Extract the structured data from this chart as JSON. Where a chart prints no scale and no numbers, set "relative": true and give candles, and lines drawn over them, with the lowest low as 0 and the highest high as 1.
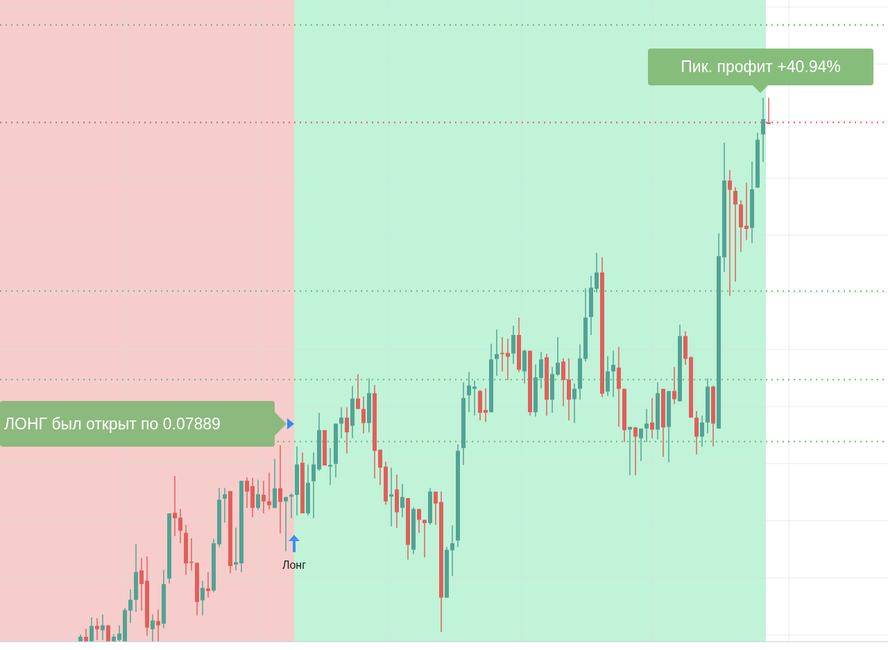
{
  "chart_data": {
    "type": "candlestick",
    "relative": true,
    "grid": true,
    "categories": [
      null,
      null,
      null,
      null,
      null,
      null,
      null,
      null,
      null,
      null,
      null,
      null,
      null,
      null,
      null,
      null,
      null,
      null,
      null,
      null,
      null,
      null,
      null,
      null,
      null,
      null,
      null,
      null,
      null,
      null,
      null,
      null,
      null,
      null,
      null,
      null,
      null,
      null,
      null,
      null,
      null,
      null,
      null,
      null,
      null,
      null,
      null,
      null,
      null,
      null,
      null,
      null,
      null,
      null,
      null,
      null,
      null,
      null,
      null,
      null,
      null,
      null,
      null,
      null,
      null,
      null,
      null,
      null,
      null,
      null,
      null,
      null,
      null,
      null,
      null,
      null,
      null,
      null,
      null,
      null,
      null,
      null,
      null,
      null,
      null,
      null,
      null,
      null,
      null,
      null,
      null,
      null,
      null,
      null,
      null,
      null,
      null,
      null,
      null,
      null,
      null,
      null,
      null,
      null,
      null,
      null,
      null,
      null,
      null,
      null,
      null,
      null,
      null,
      null,
      null,
      null,
      null,
      null,
      null,
      null,
      null,
      null,
      null,
      null,
      null
    ],
    "ohlc": [
      [
        0,
        0.013,
        0,
        0.009
      ],
      [
        0.009,
        0.024,
        0,
        0
      ],
      [
        0,
        0.045,
        0,
        0.029
      ],
      [
        0.029,
        0.043,
        0.003,
        0.023
      ],
      [
        0.021,
        0.05,
        0.003,
        0.03
      ],
      [
        0.03,
        0.03,
        0,
        0
      ],
      [
        0,
        0.014,
        0,
        0.009
      ],
      [
        0.003,
        0.03,
        0,
        0.015
      ],
      [
        0,
        0.062,
        0,
        0.058
      ],
      [
        0.057,
        0.096,
        0.034,
        0.077
      ],
      [
        0.077,
        0.18,
        0.055,
        0.128
      ],
      [
        0.131,
        0.154,
        0.057,
        0.106
      ],
      [
        0.112,
        0.157,
        0.011,
        0.026
      ],
      [
        0.023,
        0.05,
        0,
        0.039
      ],
      [
        0.038,
        0.059,
        0,
        0.03
      ],
      [
        0.033,
        0.132,
        0.025,
        0.106
      ],
      [
        0.116,
        0.236,
        0.107,
        0.236
      ],
      [
        0.237,
        0.305,
        0.194,
        0.227
      ],
      [
        0.228,
        0.244,
        0.181,
        0.204
      ],
      [
        0.2,
        0.215,
        0.123,
        0.144
      ],
      [
        0.147,
        0.19,
        0.131,
        0.145
      ],
      [
        0.145,
        0.145,
        0.048,
        0.073
      ],
      [
        0.076,
        0.112,
        0.048,
        0.099
      ],
      [
        0.098,
        0.128,
        0.081,
        0.093
      ],
      [
        0.094,
        0.189,
        0.091,
        0.181
      ],
      [
        0.179,
        0.283,
        0.174,
        0.261
      ],
      [
        0.263,
        0.283,
        0.219,
        0.271
      ],
      [
        0.277,
        0.277,
        0.126,
        0.139
      ],
      [
        0.142,
        0.21,
        0.131,
        0.146
      ],
      [
        0.144,
        0.296,
        0.128,
        0.296
      ],
      [
        0.296,
        0.302,
        0.246,
        0.276
      ],
      [
        0.286,
        0.301,
        0.229,
        0.246
      ],
      [
        0.246,
        0.298,
        0.242,
        0.271
      ],
      [
        0.27,
        0.296,
        0.236,
        0.258
      ],
      [
        0.258,
        0.311,
        0.243,
        0.251
      ],
      [
        0.246,
        0.336,
        0.246,
        0.282
      ],
      [
        0.282,
        0.361,
        0.199,
        0.257
      ],
      [
        0.258,
        0.266,
        0.166,
        0.266
      ],
      [
        0.267,
        0.273,
        0.227,
        0.27
      ],
      [
        0.27,
        0.359,
        0.232,
        0.326
      ],
      [
        0.329,
        0.348,
        0.236,
        0.236
      ],
      [
        0.236,
        0.326,
        0.232,
        0.292
      ],
      [
        0.295,
        0.348,
        0.227,
        0.326
      ],
      [
        0.317,
        0.421,
        0.314,
        0.389
      ],
      [
        0.389,
        0.389,
        0.324,
        0.324
      ],
      [
        0.322,
        0.356,
        0.288,
        0.325
      ],
      [
        0.327,
        0.401,
        0.302,
        0.401
      ],
      [
        0.401,
        0.431,
        0.374,
        0.412
      ],
      [
        0.412,
        0.431,
        0.346,
        0.385
      ],
      [
        0.397,
        0.47,
        0.374,
        0.447
      ],
      [
        0.447,
        0.492,
        0.428,
        0.428
      ],
      [
        0.428,
        0.451,
        0.383,
        0.402
      ],
      [
        0.402,
        0.484,
        0.385,
        0.457
      ],
      [
        0.457,
        0.472,
        0.3,
        0.351
      ],
      [
        0.353,
        0.353,
        0.288,
        0.32
      ],
      [
        0.322,
        0.331,
        0.252,
        0.258
      ],
      [
        0.267,
        0.32,
        0.212,
        0.271
      ],
      [
        0.28,
        0.307,
        0.209,
        0.238
      ],
      [
        0.246,
        0.29,
        0.229,
        0.266
      ],
      [
        0.264,
        0.264,
        0.151,
        0.178
      ],
      [
        0.169,
        0.247,
        0.161,
        0.244
      ],
      [
        0.244,
        0.244,
        0.2,
        0.224
      ],
      [
        0.224,
        0.224,
        0.155,
        0.218
      ],
      [
        0.218,
        0.283,
        0.215,
        0.276
      ],
      [
        0.276,
        0.276,
        0.215,
        0.254
      ],
      [
        0.257,
        0.276,
        0.018,
        0.081
      ],
      [
        0.081,
        0.174,
        0.081,
        0.169
      ],
      [
        0.168,
        0.214,
        0.121,
        0.181
      ],
      [
        0.186,
        0.363,
        0.174,
        0.351
      ],
      [
        0.356,
        0.477,
        0.325,
        0.448
      ],
      [
        0.453,
        0.496,
        0.422,
        0.471
      ],
      [
        0.465,
        0.48,
        0.416,
        0.469
      ],
      [
        0.461,
        0.463,
        0.407,
        0.421
      ],
      [
        0.426,
        0.466,
        0.404,
        0.421
      ],
      [
        0.422,
        0.548,
        0.422,
        0.519
      ],
      [
        0.52,
        0.574,
        0.489,
        0.529
      ],
      [
        0.531,
        0.56,
        0.497,
        0.529
      ],
      [
        0.531,
        0.557,
        0.481,
        0.524
      ],
      [
        0.53,
        0.581,
        0.511,
        0.564
      ],
      [
        0.564,
        0.596,
        0.496,
        0.5
      ],
      [
        0.497,
        0.537,
        0.475,
        0.535
      ],
      [
        0.535,
        0.535,
        0.416,
        0.422
      ],
      [
        0.422,
        0.51,
        0.414,
        0.486
      ],
      [
        0.485,
        0.533,
        0.466,
        0.519
      ],
      [
        0.523,
        0.529,
        0.416,
        0.445
      ],
      [
        0.445,
        0.505,
        0.421,
        0.492
      ],
      [
        0.491,
        0.56,
        0.489,
        0.513
      ],
      [
        0.515,
        0.521,
        0.433,
        0.481
      ],
      [
        0.482,
        0.521,
        0.407,
        0.445
      ],
      [
        0.446,
        0.475,
        0.402,
        0.465
      ],
      [
        0.465,
        0.547,
        0.445,
        0.521
      ],
      [
        0.52,
        0.65,
        0.515,
        0.596
      ],
      [
        0.597,
        0.673,
        0.564,
        0.651
      ],
      [
        0.649,
        0.715,
        0.642,
        0.679
      ],
      [
        0.679,
        0.707,
        0.45,
        0.456
      ],
      [
        0.46,
        0.525,
        0.452,
        0.497
      ],
      [
        0.497,
        0.535,
        0.45,
        0.509
      ],
      [
        0.504,
        0.542,
        0.395,
        0.465
      ],
      [
        0.465,
        0.465,
        0.367,
        0.389
      ],
      [
        0.39,
        0.395,
        0.306,
        0.395
      ],
      [
        0.394,
        0.395,
        0.306,
        0.377
      ],
      [
        0.374,
        0.392,
        0.332,
        0.392
      ],
      [
        0.392,
        0.428,
        0.367,
        0.401
      ],
      [
        0.403,
        0.448,
        0.374,
        0.39
      ],
      [
        0.39,
        0.477,
        0.372,
        0.457
      ],
      [
        0.465,
        0.465,
        0.34,
        0.394
      ],
      [
        0.395,
        0.461,
        0.33,
        0.461
      ],
      [
        0.461,
        0.505,
        0.437,
        0.446
      ],
      [
        0.442,
        0.583,
        0.442,
        0.562
      ],
      [
        0.562,
        0.571,
        0.509,
        0.52
      ],
      [
        0.523,
        0.525,
        0.412,
        0.412
      ],
      [
        0.412,
        0.424,
        0.344,
        0.377
      ],
      [
        0.377,
        0.416,
        0.358,
        0.403
      ],
      [
        0.403,
        0.484,
        0.383,
        0.469
      ],
      [
        0.469,
        0.471,
        0.359,
        0.401
      ],
      [
        0.392,
        0.751,
        0.392,
        0.709
      ],
      [
        0.707,
        0.918,
        0.68,
        0.848
      ],
      [
        0.848,
        0.867,
        0.636,
        0.831
      ],
      [
        0.829,
        0.836,
        0.662,
        0.804
      ],
      [
        0.804,
        0.812,
        0.717,
        0.762
      ],
      [
        0.765,
        0.844,
        0.739,
        0.759
      ],
      [
        0.761,
        0.883,
        0.733,
        0.832
      ],
      [
        0.835,
        0.936,
        0.835,
        0.923
      ],
      [
        0.933,
        1,
        0.882,
        0.961
      ],
      [
        0.955,
        1,
        0.952,
        0.952
      ]
    ],
    "ref_lines": [
      {
        "axis": "y",
        "value": 1.134,
        "color": "#6db86a",
        "line_style": "dotted"
      },
      {
        "axis": "y",
        "value": 0.645,
        "color": "#6db86a",
        "line_style": "dotted"
      },
      {
        "axis": "y",
        "value": 0.482,
        "color": "#6db86a",
        "line_style": "dotted"
      },
      {
        "axis": "y",
        "value": 0.368,
        "color": "#6db86a",
        "line_style": "dotted"
      },
      {
        "axis": "y",
        "value": 0.955,
        "color": "#e05a55",
        "line_style": "dotted"
      }
    ],
    "annotations": [
      "ЛОНГ был открыт по 0.07889",
      "Пик. профит +40.94%",
      "Лонг"
    ]
  }
}
